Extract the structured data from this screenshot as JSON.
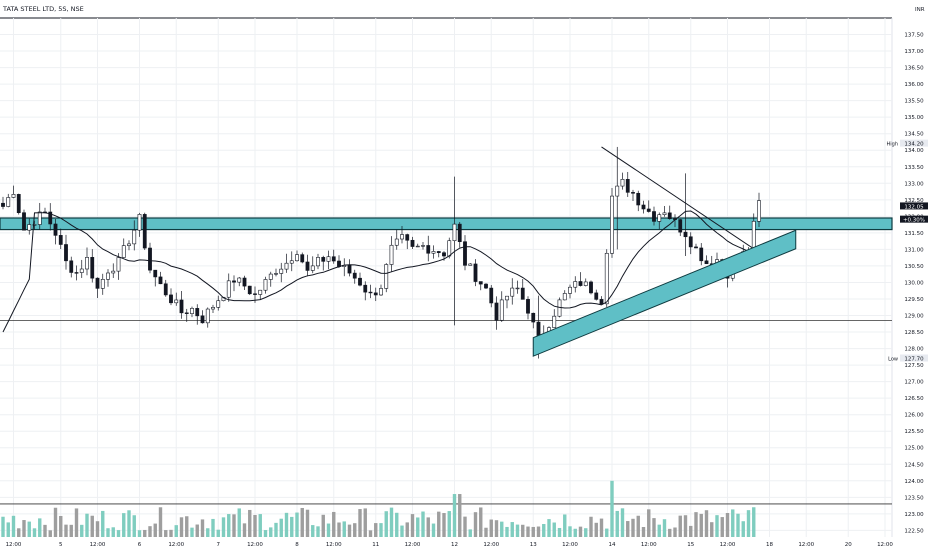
{
  "header": {
    "symbol_title": "TATA STEEL LTD, 5S, NSE",
    "currency": "INR"
  },
  "colors": {
    "up": "#131722",
    "down": "#131722",
    "grid": "#eef0f3",
    "zone_fill": "#5fbfc6",
    "zone_border": "#0e3b40",
    "volume_up": "#7fcdbf",
    "volume_down": "#9e9e9e",
    "ma": "#131722"
  },
  "chart_data": {
    "type": "candlestick",
    "y_axis": {
      "ylim": [
        122.3,
        138.0
      ],
      "ticks": [
        "122.50",
        "123.00",
        "123.50",
        "124.00",
        "124.50",
        "125.00",
        "125.50",
        "126.00",
        "126.50",
        "127.00",
        "127.50",
        "128.00",
        "128.50",
        "129.00",
        "129.50",
        "130.00",
        "130.50",
        "131.00",
        "131.50",
        "132.00",
        "132.50",
        "133.00",
        "133.50",
        "134.00",
        "134.50",
        "135.00",
        "135.50",
        "136.00",
        "136.50",
        "137.00",
        "137.50"
      ]
    },
    "x_axis": {
      "bar_count": 140,
      "ticks": [
        {
          "i": 2,
          "label": "12:00"
        },
        {
          "i": 11,
          "label": "5"
        },
        {
          "i": 18,
          "label": "12:00"
        },
        {
          "i": 26,
          "label": "6"
        },
        {
          "i": 33,
          "label": "12:00"
        },
        {
          "i": 41,
          "label": "7"
        },
        {
          "i": 48,
          "label": "12:00"
        },
        {
          "i": 56,
          "label": "8"
        },
        {
          "i": 63,
          "label": "12:00"
        },
        {
          "i": 71,
          "label": "11"
        },
        {
          "i": 78,
          "label": "12:00"
        },
        {
          "i": 86,
          "label": "12"
        },
        {
          "i": 93,
          "label": "12:00"
        },
        {
          "i": 101,
          "label": "13"
        },
        {
          "i": 108,
          "label": "12:00"
        },
        {
          "i": 116,
          "label": "14"
        },
        {
          "i": 123,
          "label": "12:00"
        },
        {
          "i": 131,
          "label": "15"
        },
        {
          "i": 138,
          "label": "12:00"
        },
        {
          "i": 146,
          "label": "18"
        },
        {
          "i": 153,
          "label": "12:00"
        },
        {
          "i": 161,
          "label": "20"
        },
        {
          "i": 168,
          "label": "12:00"
        }
      ]
    },
    "price_labels": [
      {
        "label": "High",
        "value": "134.20",
        "y": 134.2
      },
      {
        "label": "",
        "value": "132.05",
        "y": 132.3
      },
      {
        "label": "",
        "value": "+0.30%",
        "y": 131.9
      },
      {
        "label": "Low",
        "value": "127.70",
        "y": 127.7
      }
    ],
    "horizontal_levels": [
      128.85,
      123.3
    ],
    "resistance_zone": [
      131.6,
      131.95
    ],
    "ohlc_anchors": [
      [
        0,
        132.3
      ],
      [
        2,
        132.8
      ],
      [
        4,
        131.6
      ],
      [
        6,
        131.9
      ],
      [
        8,
        132.1
      ],
      [
        10,
        131.5
      ],
      [
        12,
        130.6
      ],
      [
        14,
        130.3
      ],
      [
        16,
        130.7
      ],
      [
        18,
        129.8
      ],
      [
        20,
        130.4
      ],
      [
        22,
        130.6
      ],
      [
        24,
        131.3
      ],
      [
        26,
        131.9
      ],
      [
        28,
        130.4
      ],
      [
        30,
        129.9
      ],
      [
        32,
        129.5
      ],
      [
        34,
        129.1
      ],
      [
        36,
        129.2
      ],
      [
        38,
        128.9
      ],
      [
        40,
        129.3
      ],
      [
        42,
        129.7
      ],
      [
        44,
        130.1
      ],
      [
        46,
        129.9
      ],
      [
        48,
        129.6
      ],
      [
        50,
        130.0
      ],
      [
        52,
        130.4
      ],
      [
        54,
        130.6
      ],
      [
        56,
        131.0
      ],
      [
        58,
        130.3
      ],
      [
        60,
        130.6
      ],
      [
        62,
        130.8
      ],
      [
        64,
        130.5
      ],
      [
        66,
        130.3
      ],
      [
        68,
        130.0
      ],
      [
        70,
        129.6
      ],
      [
        72,
        129.9
      ],
      [
        74,
        131.0
      ],
      [
        76,
        131.3
      ],
      [
        78,
        131.0
      ],
      [
        80,
        131.1
      ],
      [
        82,
        131.0
      ],
      [
        84,
        130.9
      ],
      [
        86,
        131.7
      ],
      [
        88,
        130.6
      ],
      [
        90,
        130.2
      ],
      [
        92,
        129.8
      ],
      [
        94,
        129.0
      ],
      [
        96,
        129.6
      ],
      [
        98,
        129.8
      ],
      [
        100,
        129.2
      ],
      [
        102,
        128.2
      ],
      [
        104,
        128.8
      ],
      [
        106,
        129.4
      ],
      [
        108,
        129.8
      ],
      [
        110,
        130.0
      ],
      [
        112,
        129.8
      ],
      [
        114,
        129.5
      ],
      [
        116,
        132.6
      ],
      [
        118,
        133.0
      ],
      [
        120,
        132.7
      ],
      [
        122,
        132.3
      ],
      [
        124,
        132.0
      ],
      [
        126,
        132.2
      ],
      [
        128,
        131.8
      ],
      [
        130,
        131.5
      ],
      [
        132,
        131.0
      ],
      [
        134,
        130.6
      ],
      [
        136,
        130.7
      ],
      [
        138,
        130.3
      ],
      [
        140,
        130.7
      ],
      [
        142,
        131.0
      ],
      [
        144,
        132.4
      ]
    ],
    "wicks_special": [
      {
        "i": 86,
        "high": 133.2,
        "low": 128.7
      },
      {
        "i": 102,
        "high": 129.6,
        "low": 127.7
      },
      {
        "i": 117,
        "high": 134.1,
        "low": 131.0
      },
      {
        "i": 130,
        "high": 133.3,
        "low": 130.8
      }
    ],
    "trendlines": [
      {
        "type": "line",
        "from": [
          114,
          134.1
        ],
        "to": [
          146,
          130.7
        ]
      },
      {
        "type": "channel",
        "from": [
          101,
          128.05
        ],
        "to": [
          151,
          131.3
        ],
        "width": 0.28
      }
    ],
    "volume": {
      "spike_index": 144,
      "spike_value": 26.3,
      "second_value": 25.6,
      "base": 122.3,
      "typical_max": 123.4
    }
  }
}
